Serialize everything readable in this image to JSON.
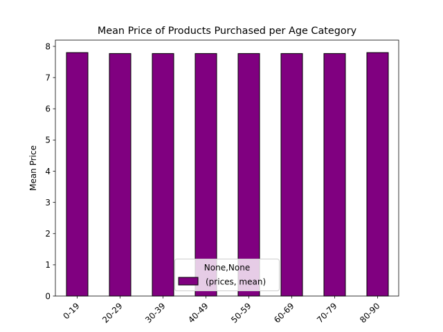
{
  "chart_data": {
    "type": "bar",
    "title": "Mean Price of Products Purchased per Age Category",
    "xlabel": "",
    "ylabel": "Mean Price",
    "categories": [
      "0-19",
      "20-29",
      "30-39",
      "40-49",
      "50-59",
      "60-69",
      "70-79",
      "80-90"
    ],
    "series": [
      {
        "name": "(prices, mean)",
        "values": [
          7.8,
          7.77,
          7.77,
          7.77,
          7.77,
          7.77,
          7.77,
          7.8
        ]
      }
    ],
    "ylim": [
      0,
      8.2
    ],
    "yticks": [
      0,
      1,
      2,
      3,
      4,
      5,
      6,
      7,
      8
    ],
    "grid": false,
    "legend": {
      "title": "None,None",
      "placement": "bottom-center"
    },
    "colors": {
      "bar": "#800080",
      "edge": "#000000"
    }
  }
}
